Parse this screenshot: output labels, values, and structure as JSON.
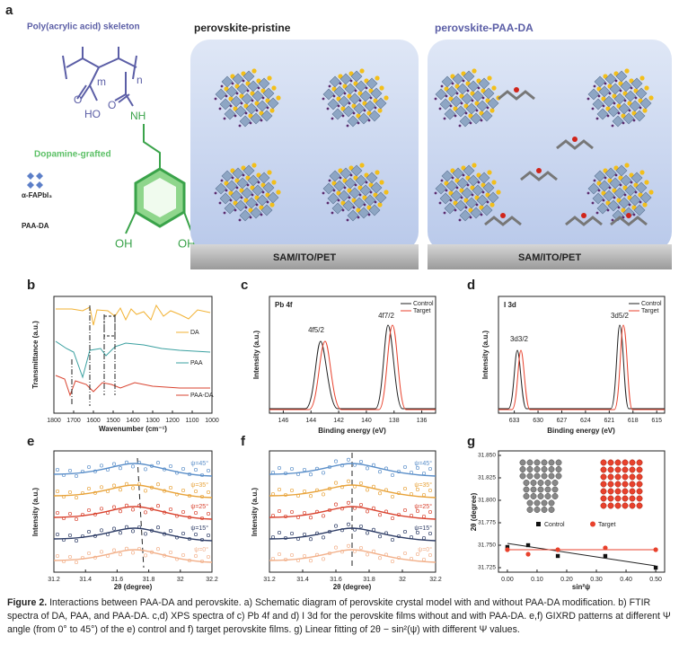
{
  "panel_a": {
    "letter": "a",
    "skeleton": "Poly(acrylic acid) skeleton",
    "m": "m",
    "n": "n",
    "ho": "HO",
    "o1": "O",
    "o2": "O",
    "nh": "NH",
    "dopamine": "Dopamine-grafted",
    "oh1": "OH",
    "oh2": "OH",
    "fapbi": "α-FAPbI₃",
    "paada": "PAA-DA",
    "pristine_title": "perovskite-pristine",
    "paa_title": "perovskite-PAA-DA",
    "substrate1": "SAM/ITO/PET",
    "substrate2": "SAM/ITO/PET"
  },
  "panel_b": {
    "letter": "b",
    "ylabel": "Transmittance (a.u.)",
    "xlabel": "Wavenumber (cm⁻¹)",
    "xlim": [
      1800,
      1000
    ],
    "xticks": [
      1800,
      1700,
      1600,
      1500,
      1400,
      1300,
      1200,
      1100,
      1000
    ],
    "legend": [
      "DA",
      "PAA",
      "PAA-DA"
    ]
  },
  "panel_c": {
    "letter": "c",
    "tag": "Pb 4f",
    "peak1": "4f5/2",
    "peak2": "4f7/2",
    "legend": [
      "Control",
      "Target"
    ],
    "ylabel": "Intensity (a.u.)",
    "xlabel": "Binding energy (eV)",
    "xlim": [
      147,
      135
    ],
    "xticks": [
      146,
      144,
      142,
      140,
      138,
      136
    ]
  },
  "panel_d": {
    "letter": "d",
    "tag": "I 3d",
    "peak1": "3d3/2",
    "peak2": "3d5/2",
    "legend": [
      "Control",
      "Target"
    ],
    "ylabel": "Intensity (a.u.)",
    "xlabel": "Binding energy (eV)",
    "xlim": [
      635,
      614
    ],
    "xticks": [
      633,
      630,
      627,
      624,
      621,
      618,
      615
    ]
  },
  "panel_e": {
    "letter": "e",
    "psi": [
      "ψ=45°",
      "ψ=35°",
      "ψ=25°",
      "ψ=15°",
      "ψ=0°"
    ],
    "ylabel": "Intensity (a.u.)",
    "xlabel": "2θ (degree)",
    "xlim": [
      31.2,
      32.2
    ],
    "xticks": [
      31.2,
      31.4,
      31.6,
      31.8,
      32,
      32.2
    ]
  },
  "panel_f": {
    "letter": "f",
    "psi": [
      "ψ=45°",
      "ψ=35°",
      "ψ=25°",
      "ψ=15°",
      "ψ=0°"
    ],
    "ylabel": "Intensity (a.u.)",
    "xlabel": "2θ (degree)",
    "xlim": [
      31.2,
      32.2
    ],
    "xticks": [
      31.2,
      31.4,
      31.6,
      31.8,
      32,
      32.2
    ]
  },
  "panel_g": {
    "letter": "g",
    "ylabel": "2θ (degree)",
    "xlabel": "sin²ψ",
    "xlim": [
      -0.03,
      0.53
    ],
    "ylim": [
      31.72,
      31.855
    ],
    "xticks": [
      {
        "value": 0,
        "label": "0.00"
      },
      {
        "value": 0.1,
        "label": "0.10"
      },
      {
        "value": 0.2,
        "label": "0.20"
      },
      {
        "value": 0.3,
        "label": "0.30"
      },
      {
        "value": 0.4,
        "label": "0.40"
      },
      {
        "value": 0.5,
        "label": "0.50"
      }
    ],
    "yticks": [
      31.725,
      {
        "value": 31.75,
        "label": "31.750"
      },
      31.775,
      {
        "value": 31.8,
        "label": "31.800"
      },
      31.825,
      {
        "value": 31.85,
        "label": "31.850"
      }
    ],
    "x": [
      0,
      0.07,
      0.17,
      0.33,
      0.5
    ],
    "series": [
      {
        "name": "Control",
        "color": "#111111",
        "values": [
          31.748,
          31.75,
          31.738,
          31.738,
          31.725
        ]
      },
      {
        "name": "Target",
        "color": "#e8412c",
        "values": [
          31.745,
          31.74,
          31.745,
          31.747,
          31.745
        ]
      }
    ]
  },
  "caption": {
    "label": "Figure 2.",
    "text": "Interactions between PAA-DA and perovskite. a) Schematic diagram of perovskite crystal model with and without PAA-DA modification. b) FTIR spectra of DA, PAA, and PAA-DA. c,d) XPS spectra of c) Pb 4f and d) I 3d for the perovskite films without and with PAA-DA. e,f) GIXRD patterns at different Ψ angle (from 0° to 45°) of the e) control and f) target perovskite films. g) Linear fitting of 2θ − sin²(ψ) with different Ψ values."
  }
}
